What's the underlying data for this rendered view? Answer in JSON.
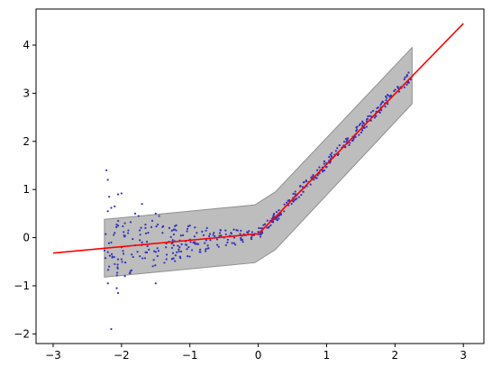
{
  "chart_data": {
    "type": "scatter",
    "title": "",
    "xlabel": "",
    "ylabel": "",
    "xlim": [
      -3.25,
      3.3
    ],
    "ylim": [
      -2.2,
      4.75
    ],
    "xticks": [
      -3,
      -2,
      -1,
      0,
      1,
      2,
      3
    ],
    "xtick_labels": [
      "−3",
      "−2",
      "−1",
      "0",
      "1",
      "2",
      "3"
    ],
    "yticks": [
      -2,
      -1,
      0,
      1,
      2,
      3,
      4
    ],
    "ytick_labels": [
      "−2",
      "−1",
      "0",
      "1",
      "2",
      "3",
      "4"
    ],
    "grid": false,
    "legend": "none",
    "colors": {
      "points": "#3333bb",
      "line": "#ff0000",
      "band": "#bdbdbd",
      "band_edge": "#8f8f8f"
    },
    "scatter_description": {
      "x_range": [
        -2.25,
        2.25
      ],
      "segment_left": {
        "x": [
          -2.25,
          0
        ],
        "y_trend": [
          -0.25,
          0.05
        ],
        "noise": "large near x=-2, decreasing toward 0"
      },
      "segment_right": {
        "x": [
          0,
          2.25
        ],
        "y_trend": [
          0.05,
          3.4
        ],
        "noise": "small"
      },
      "outliers": [
        [
          -2.2,
          1.4
        ],
        [
          -2.15,
          -1.9
        ],
        [
          -2.05,
          -1.15
        ]
      ]
    },
    "points": [
      [
        -2.22,
        1.4
      ],
      [
        -2.2,
        1.2
      ],
      [
        -2.18,
        0.85
      ],
      [
        -2.2,
        0.55
      ],
      [
        -2.15,
        0.62
      ],
      [
        -2.1,
        0.65
      ],
      [
        -2.05,
        0.9
      ],
      [
        -2.0,
        0.92
      ],
      [
        -2.15,
        -1.9
      ],
      [
        -2.05,
        -1.15
      ],
      [
        -2.07,
        -1.05
      ],
      [
        -2.2,
        -0.95
      ],
      [
        -2.18,
        -0.6
      ],
      [
        -2.1,
        -0.55
      ],
      [
        -2.0,
        -0.45
      ],
      [
        -1.95,
        -0.8
      ],
      [
        -2.2,
        -0.3
      ],
      [
        -2.15,
        -0.1
      ],
      [
        -2.1,
        0.1
      ],
      [
        -2.05,
        0.25
      ],
      [
        -2.0,
        -0.2
      ],
      [
        -1.95,
        0.3
      ],
      [
        -1.9,
        0.15
      ],
      [
        -1.85,
        -0.35
      ],
      [
        -1.8,
        0.5
      ],
      [
        -1.75,
        0.45
      ],
      [
        -1.7,
        0.7
      ],
      [
        -1.7,
        -0.1
      ],
      [
        -1.65,
        0.2
      ],
      [
        -1.6,
        -0.25
      ],
      [
        -1.55,
        0.35
      ],
      [
        -1.5,
        0.5
      ],
      [
        -1.45,
        0.45
      ],
      [
        -1.5,
        -0.95
      ],
      [
        -1.4,
        0.1
      ],
      [
        -1.35,
        -0.2
      ],
      [
        -1.3,
        0.2
      ],
      [
        -1.25,
        -0.05
      ],
      [
        -1.2,
        0.15
      ],
      [
        -1.15,
        -0.2
      ],
      [
        -1.1,
        0.05
      ],
      [
        -1.05,
        -0.15
      ],
      [
        -1.0,
        0.25
      ],
      [
        -0.95,
        -0.1
      ],
      [
        -0.9,
        0.1
      ],
      [
        -0.85,
        -0.25
      ],
      [
        -0.8,
        0.05
      ],
      [
        -0.75,
        0.2
      ],
      [
        -0.7,
        -0.05
      ],
      [
        -0.65,
        0.1
      ],
      [
        -0.6,
        -0.15
      ],
      [
        -0.55,
        0.15
      ],
      [
        -0.5,
        0.0
      ],
      [
        -0.45,
        -0.1
      ],
      [
        -0.4,
        0.1
      ],
      [
        -0.35,
        0.0
      ],
      [
        -0.3,
        0.15
      ],
      [
        -0.25,
        -0.05
      ],
      [
        -0.2,
        0.05
      ],
      [
        -0.15,
        0.1
      ],
      [
        -0.1,
        0.0
      ],
      [
        -0.05,
        0.08
      ],
      [
        0.0,
        0.12
      ]
    ],
    "fit_line": {
      "x": [
        -3,
        0,
        0.3,
        3
      ],
      "y": [
        -0.32,
        0.08,
        0.5,
        4.45
      ]
    },
    "band": {
      "x": [
        -2.25,
        -0.05,
        0.25,
        2.25
      ],
      "upper": [
        0.38,
        0.68,
        0.95,
        3.95
      ],
      "lower": [
        -0.82,
        -0.52,
        -0.25,
        2.78
      ]
    }
  }
}
